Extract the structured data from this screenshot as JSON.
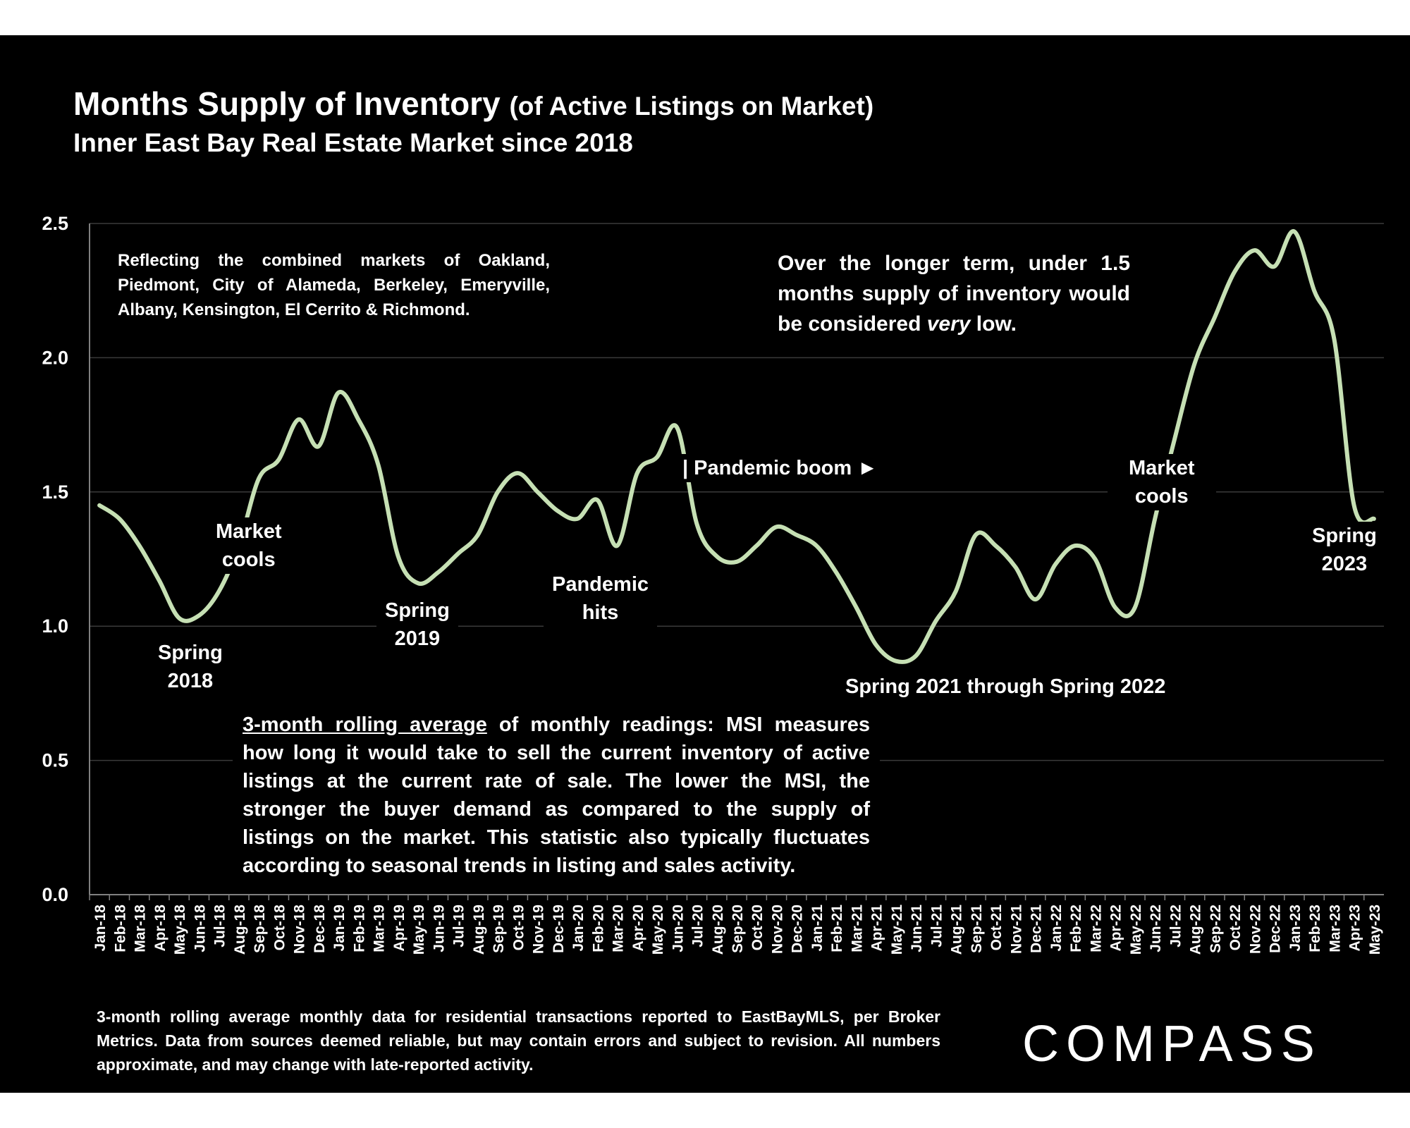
{
  "title": "Months Supply of Inventory",
  "title_paren": "(of Active Listings on Market)",
  "subtitle": "Inner East Bay Real Estate Market since 2018",
  "notes": {
    "markets": "Reflecting the combined markets of Oakland, Piedmont, City of Alameda, Berkeley, Emeryville, Albany, Kensington, El Cerrito & Richmond.",
    "longterm_pre": "Over the longer term, under 1.5 months supply of inventory would be considered ",
    "longterm_em": "very",
    "longterm_post": " low.",
    "msi_underlined": "3-month rolling average",
    "msi_rest": " of monthly readings: MSI measures how long it would take to sell the current inventory of active listings at the current rate of sale. The lower the MSI, the stronger the buyer demand as compared to the supply of listings on the market. This statistic also typically fluctuates according to seasonal trends in listing and sales activity.",
    "footer": "3-month rolling average monthly data for residential transactions reported to EastBayMLS, per Broker Metrics. Data from sources deemed reliable, but may contain errors and subject to revision. All numbers approximate, and may change with late-reported activity."
  },
  "annotations": {
    "spring2018_l1": "Spring",
    "spring2018_l2": "2018",
    "cools1_l1": "Market",
    "cools1_l2": "cools",
    "spring2019_l1": "Spring",
    "spring2019_l2": "2019",
    "pandemic_l1": "Pandemic",
    "pandemic_l2": "hits",
    "boom": "| Pandemic boom ►",
    "spring2021": "Spring 2021 through Spring 2022",
    "cools2_l1": "Market",
    "cools2_l2": "cools",
    "spring2023_l1": "Spring",
    "spring2023_l2": "2023"
  },
  "logo_text": "COMPASS",
  "colors": {
    "line": "#c6e0b4",
    "background": "#000000",
    "text": "#ffffff",
    "grid": "#3a3a3a"
  },
  "chart_data": {
    "type": "line",
    "title": "Months Supply of Inventory (of Active Listings on Market)",
    "subtitle": "Inner East Bay Real Estate Market since 2018",
    "xlabel": "",
    "ylabel": "",
    "ylim": [
      0,
      2.5
    ],
    "yticks": [
      "0.0",
      "0.5",
      "1.0",
      "1.5",
      "2.0",
      "2.5"
    ],
    "grid": true,
    "categories": [
      "Jan-18",
      "Feb-18",
      "Mar-18",
      "Apr-18",
      "May-18",
      "Jun-18",
      "Jul-18",
      "Aug-18",
      "Sep-18",
      "Oct-18",
      "Nov-18",
      "Dec-18",
      "Jan-19",
      "Feb-19",
      "Mar-19",
      "Apr-19",
      "May-19",
      "Jun-19",
      "Jul-19",
      "Aug-19",
      "Sep-19",
      "Oct-19",
      "Nov-19",
      "Dec-19",
      "Jan-20",
      "Feb-20",
      "Mar-20",
      "Apr-20",
      "May-20",
      "Jun-20",
      "Jul-20",
      "Aug-20",
      "Sep-20",
      "Oct-20",
      "Nov-20",
      "Dec-20",
      "Jan-21",
      "Feb-21",
      "Mar-21",
      "Apr-21",
      "May-21",
      "Jun-21",
      "Jul-21",
      "Aug-21",
      "Sep-21",
      "Oct-21",
      "Nov-21",
      "Dec-21",
      "Jan-22",
      "Feb-22",
      "Mar-22",
      "Apr-22",
      "May-22",
      "Jun-22",
      "Jul-22",
      "Aug-22",
      "Sep-22",
      "Oct-22",
      "Nov-22",
      "Dec-22",
      "Jan-23",
      "Feb-23",
      "Mar-23",
      "Apr-23",
      "May-23"
    ],
    "series": [
      {
        "values": [
          1.45,
          1.4,
          1.3,
          1.17,
          1.03,
          1.04,
          1.13,
          1.3,
          1.55,
          1.62,
          1.77,
          1.67,
          1.87,
          1.77,
          1.6,
          1.26,
          1.16,
          1.2,
          1.27,
          1.34,
          1.5,
          1.57,
          1.5,
          1.43,
          1.4,
          1.47,
          1.3,
          1.57,
          1.63,
          1.74,
          1.38,
          1.26,
          1.24,
          1.3,
          1.37,
          1.34,
          1.3,
          1.2,
          1.07,
          0.93,
          0.87,
          0.89,
          1.02,
          1.13,
          1.34,
          1.3,
          1.22,
          1.1,
          1.23,
          1.3,
          1.25,
          1.07,
          1.07,
          1.4,
          1.7,
          1.98,
          2.15,
          2.32,
          2.4,
          2.34,
          2.47,
          2.25,
          2.07,
          1.45,
          1.4
        ]
      }
    ]
  }
}
